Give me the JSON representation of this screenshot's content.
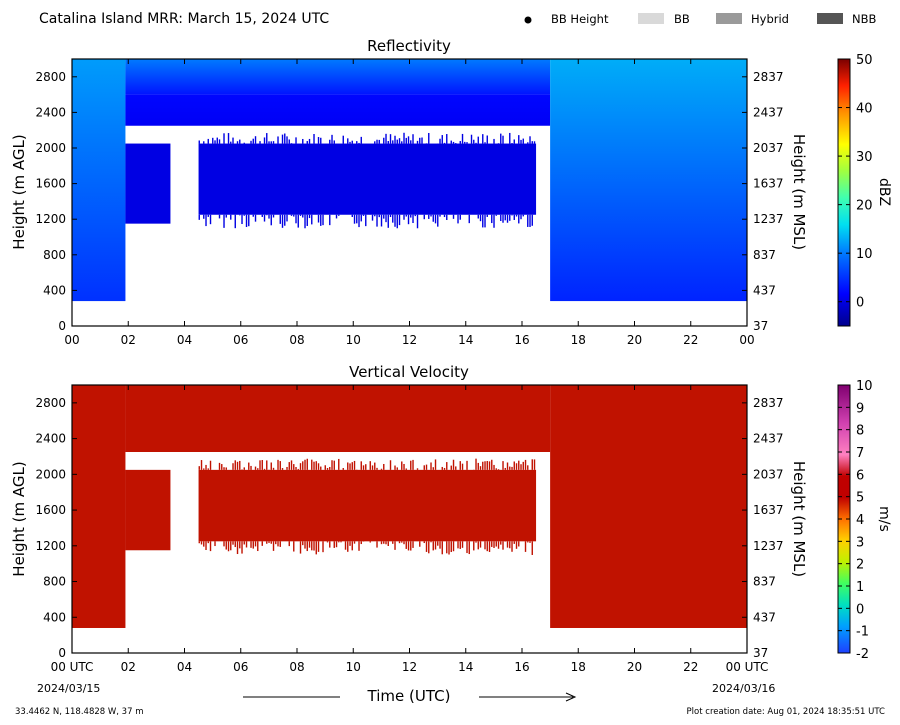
{
  "header": {
    "title": "Catalina Island MRR:  March 15, 2024 UTC",
    "legend": [
      {
        "label": "BB Height",
        "kind": "dot",
        "color": "#000000"
      },
      {
        "label": "BB",
        "kind": "box",
        "color": "#d9d9d9"
      },
      {
        "label": "Hybrid",
        "kind": "box",
        "color": "#9a9a9a"
      },
      {
        "label": "NBB",
        "kind": "box",
        "color": "#555555"
      }
    ]
  },
  "footer": {
    "location": "33.4462 N, 118.4828 W, 37 m",
    "creation": "Plot creation date: Aug 01, 2024 18:35:51 UTC",
    "xlabel": "Time (UTC)",
    "start_date": "2024/03/15",
    "end_date": "2024/03/16"
  },
  "chart_data": [
    {
      "type": "heatmap",
      "title": "Reflectivity",
      "ylabel": "Height (m AGL)",
      "ylabel_right": "Height (m MSL)",
      "x_ticks": [
        "00",
        "02",
        "04",
        "06",
        "08",
        "10",
        "12",
        "14",
        "16",
        "18",
        "20",
        "22",
        "00"
      ],
      "xlim": [
        0,
        24
      ],
      "y_ticks": [
        0,
        400,
        800,
        1200,
        1600,
        2000,
        2400,
        2800
      ],
      "y_ticks_right": [
        "37",
        "437",
        "837",
        "1237",
        "1637",
        "2037",
        "2437",
        "2837"
      ],
      "ylim": [
        0,
        3000
      ],
      "colorbar": {
        "label": "dBZ",
        "min": -5,
        "max": 50,
        "ticks": [
          0,
          10,
          20,
          30,
          40,
          50
        ]
      },
      "echo_regions": [
        {
          "label": "deep layer",
          "t_start": 0.0,
          "t_end": 1.9,
          "h_bottom": 280,
          "h_top": 3000,
          "dbz_top": 12,
          "dbz_bottom": 5
        },
        {
          "label": "upper layer",
          "t_start": 1.9,
          "t_end": 17.0,
          "h_bottom": 2600,
          "h_top": 3000,
          "dbz_top": 10,
          "dbz_bottom": 3
        },
        {
          "label": "upper layer lower edge",
          "t_start": 1.9,
          "t_end": 17.0,
          "h_bottom": 2250,
          "h_top": 2600,
          "dbz_top": 2,
          "dbz_bottom": 1
        },
        {
          "label": "middle layer",
          "t_start": 4.5,
          "t_end": 16.5,
          "h_bottom": 1250,
          "h_top": 2050,
          "dbz_top": 0,
          "dbz_bottom": 0
        },
        {
          "label": "middle layer early",
          "t_start": 1.9,
          "t_end": 3.5,
          "h_bottom": 1150,
          "h_top": 2050,
          "dbz_top": 0,
          "dbz_bottom": 0
        },
        {
          "label": "deep layer late",
          "t_start": 17.0,
          "t_end": 24.0,
          "h_bottom": 280,
          "h_top": 3000,
          "dbz_top": 13,
          "dbz_bottom": 4
        }
      ]
    },
    {
      "type": "heatmap",
      "title": "Vertical Velocity",
      "ylabel": "Height (m AGL)",
      "ylabel_right": "Height (m MSL)",
      "x_ticks": [
        "00 UTC",
        "02",
        "04",
        "06",
        "08",
        "10",
        "12",
        "14",
        "16",
        "18",
        "20",
        "22",
        "00 UTC"
      ],
      "xlim": [
        0,
        24
      ],
      "y_ticks": [
        0,
        400,
        800,
        1200,
        1600,
        2000,
        2400,
        2800
      ],
      "y_ticks_right": [
        "37",
        "437",
        "837",
        "1237",
        "1637",
        "2037",
        "2437",
        "2837"
      ],
      "ylim": [
        0,
        3000
      ],
      "colorbar": {
        "label": "m/s",
        "min": -2,
        "max": 10,
        "ticks": [
          -2,
          -1,
          0,
          1,
          2,
          3,
          4,
          5,
          6,
          7,
          8,
          9,
          10
        ]
      },
      "echo_regions": [
        {
          "label": "deep layer",
          "t_start": 0.0,
          "t_end": 1.9,
          "h_bottom": 280,
          "h_top": 3000,
          "velocity": 6
        },
        {
          "label": "upper layer",
          "t_start": 1.9,
          "t_end": 17.0,
          "h_bottom": 2250,
          "h_top": 3000,
          "velocity": 6
        },
        {
          "label": "middle layer",
          "t_start": 4.5,
          "t_end": 16.5,
          "h_bottom": 1250,
          "h_top": 2050,
          "velocity": 6
        },
        {
          "label": "middle layer early",
          "t_start": 1.9,
          "t_end": 3.5,
          "h_bottom": 1150,
          "h_top": 2050,
          "velocity": 6
        },
        {
          "label": "deep layer late",
          "t_start": 17.0,
          "t_end": 24.0,
          "h_bottom": 280,
          "h_top": 3000,
          "velocity": 6
        }
      ]
    }
  ]
}
